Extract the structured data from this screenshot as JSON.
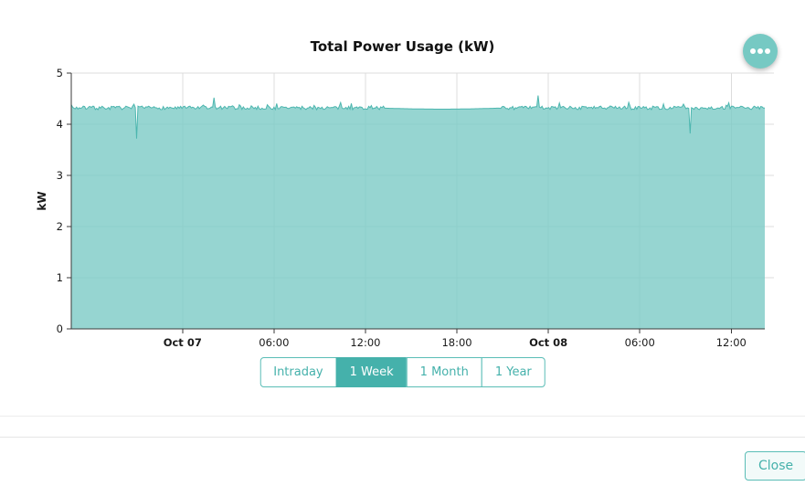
{
  "chart_data": {
    "type": "area",
    "title": "Total Power Usage (kW)",
    "xlabel": "",
    "ylabel": "kW",
    "ylim": [
      0,
      5
    ],
    "y_ticks": [
      0,
      1,
      2,
      3,
      4,
      5
    ],
    "x_range_hours": [
      -7.3,
      38.2
    ],
    "x_ticks": [
      {
        "t": 0,
        "label": "Oct 07",
        "bold": true
      },
      {
        "t": 6,
        "label": "06:00",
        "bold": false
      },
      {
        "t": 12,
        "label": "12:00",
        "bold": false
      },
      {
        "t": 18,
        "label": "18:00",
        "bold": false
      },
      {
        "t": 24,
        "label": "Oct 08",
        "bold": true
      },
      {
        "t": 30,
        "label": "06:00",
        "bold": false
      },
      {
        "t": 36,
        "label": "12:00",
        "bold": false
      }
    ],
    "baseline_kw": 4.32,
    "noise_kw": 0.035,
    "smooth_interval_hours": [
      13.2,
      20.8
    ],
    "spikes": [
      {
        "t": -3.0,
        "v": 3.72
      },
      {
        "t": 2.1,
        "v": 4.52
      },
      {
        "t": 23.3,
        "v": 4.56
      },
      {
        "t": 33.3,
        "v": 3.82
      }
    ],
    "grid": true,
    "legend": "none",
    "colors": {
      "fill": "#7ccbc5",
      "fill_opacity": 0.8,
      "line": "#4cb6af",
      "grid": "#dcdcdc",
      "axis": "#3a3a3a",
      "label": "#1a1a1a"
    }
  },
  "header": {
    "menu_button": {
      "icon": "ellipsis-icon"
    }
  },
  "range_selector": {
    "options": [
      {
        "label": "Intraday",
        "active": false
      },
      {
        "label": "1 Week",
        "active": true
      },
      {
        "label": "1 Month",
        "active": false
      },
      {
        "label": "1 Year",
        "active": false
      }
    ]
  },
  "footer": {
    "close_label": "Close"
  },
  "theme": {
    "accent": "#45b1ab",
    "menu_button_bg": "#76c9c3"
  }
}
